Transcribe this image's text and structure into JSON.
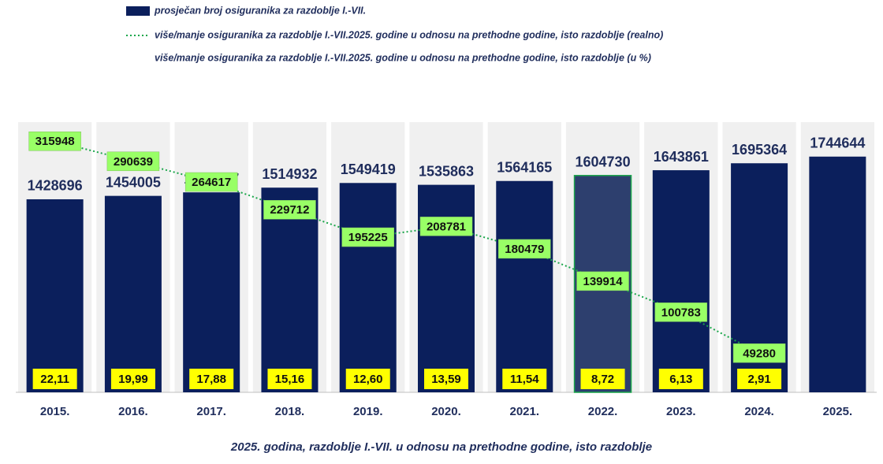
{
  "chart_data": {
    "type": "bar",
    "x_label": "2025. godina, razdoblje I.-VII. u odnosu na prethodne godine, isto razdoblje",
    "categories": [
      "2015.",
      "2016.",
      "2017.",
      "2018.",
      "2019.",
      "2020.",
      "2021.",
      "2022.",
      "2023.",
      "2024.",
      "2025."
    ],
    "ylim": [
      0,
      2000000
    ],
    "y2lim": [
      0,
      340000
    ],
    "series": [
      {
        "name": "prosječan broj osiguranika za razdoblje I.-VII.",
        "type": "bar",
        "color": "#0b1f5c",
        "colors": [
          "#0b1f5c",
          "#0b1f5c",
          "#0b1f5c",
          "#0b1f5c",
          "#0b1f5c",
          "#0b1f5c",
          "#0b1f5c",
          "#2d3f6e",
          "#0b1f5c",
          "#0b1f5c",
          "#0b1f5c"
        ],
        "values": [
          1428696,
          1454005,
          1480027,
          1514932,
          1549419,
          1535863,
          1564165,
          1604730,
          1643861,
          1695364,
          1744644
        ]
      },
      {
        "name": "više/manje osiguranika za razdoblje I.-VII.2025. godine u odnosu na prethodne godine, isto razdoblje (realno)",
        "type": "line",
        "axis": "y2",
        "color": "#1aa64a",
        "label_color": "#99ff66",
        "values": [
          315948,
          290639,
          264617,
          229712,
          195225,
          208781,
          180479,
          139914,
          100783,
          49280,
          null
        ]
      },
      {
        "name": "više/manje osiguranika za razdoblje I.-VII.2025. godine u odnosu na prethodne godine, isto razdoblje (u %)",
        "type": "label",
        "label_color": "#ffff00",
        "values": [
          22.11,
          19.99,
          17.88,
          15.16,
          12.6,
          13.59,
          11.54,
          8.72,
          6.13,
          2.91,
          null
        ],
        "value_labels": [
          "22,11",
          "19,99",
          "17,88",
          "15,16",
          "12,60",
          "13,59",
          "11,54",
          "8,72",
          "6,13",
          "2,91",
          null
        ]
      }
    ]
  }
}
